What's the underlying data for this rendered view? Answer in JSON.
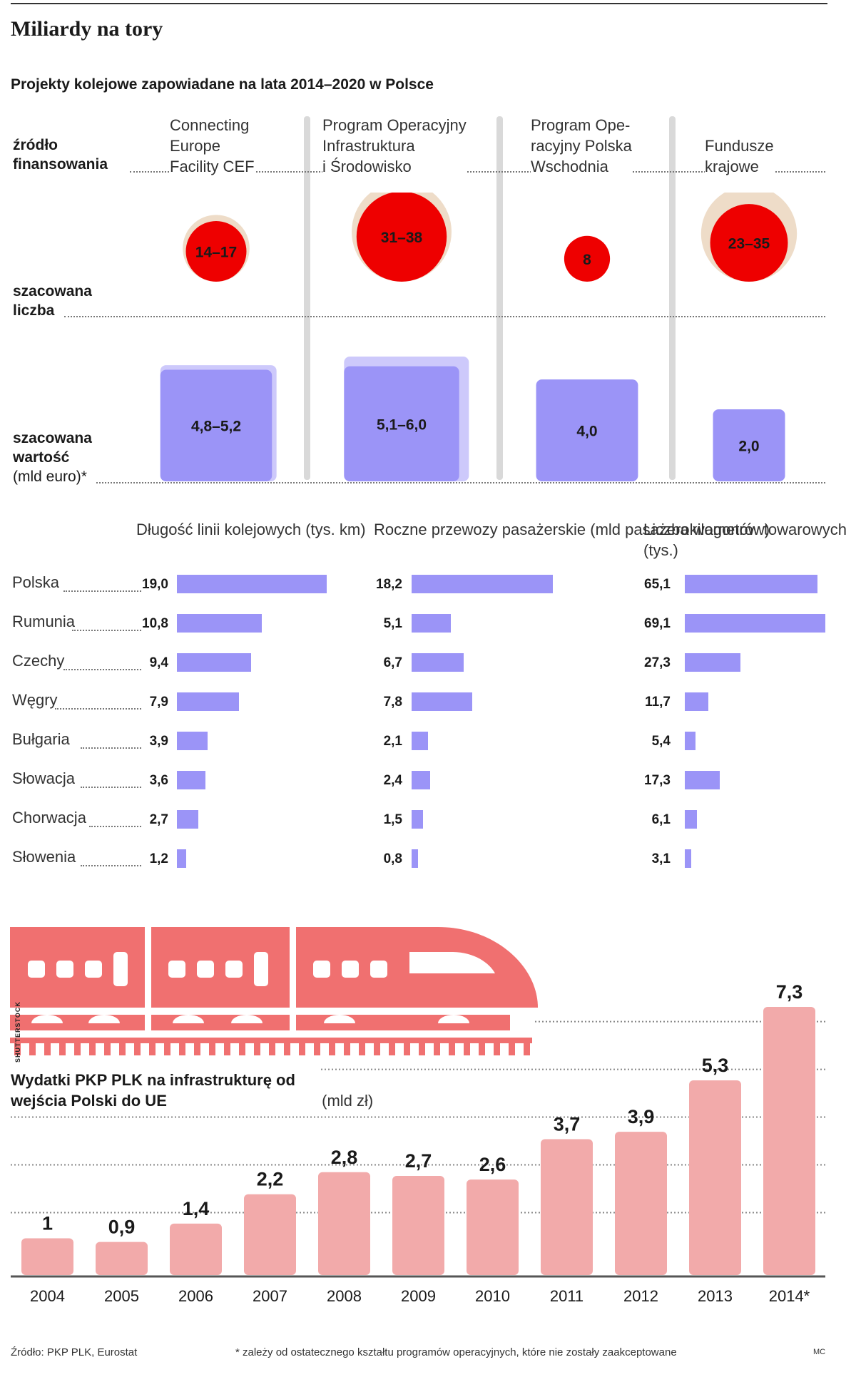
{
  "header": {
    "headline": "Miliardy na tory",
    "subtitle": "Projekty kolejowe zapowiadane na lata 2014–2020 w Polsce"
  },
  "top_chart": {
    "row_labels": {
      "source_line1": "źródło",
      "source_line2": "finansowania",
      "count_line1": "szacowana",
      "count_line2": "liczba",
      "value_line1": "szacowana",
      "value_line2": "wartość",
      "value_unit": "(mld euro)*"
    },
    "programs": [
      {
        "lines": [
          "Connecting",
          "Europe",
          "Facility CEF"
        ],
        "count_label": "14–17",
        "count_min": 14,
        "count_max": 17,
        "value_label": "4,8–5,2",
        "value_min": 4.8,
        "value_max": 5.2
      },
      {
        "lines": [
          "Program Operacyjny",
          "Infrastruktura",
          "i Środowisko"
        ],
        "count_label": "31–38",
        "count_min": 31,
        "count_max": 38,
        "value_label": "5,1–6,0",
        "value_min": 5.1,
        "value_max": 6.0
      },
      {
        "lines": [
          "Program Ope-",
          "racyjny Polska",
          "Wschodnia"
        ],
        "count_label": "8",
        "count_min": 8,
        "count_max": 8,
        "value_label": "4,0",
        "value_min": 4.0,
        "value_max": 4.0
      },
      {
        "lines": [
          "Fundusze",
          "krajowe"
        ],
        "count_label": "23–35",
        "count_min": 23,
        "count_max": 35,
        "value_label": "2,0",
        "value_min": 2.0,
        "value_max": 2.0
      }
    ],
    "colors": {
      "bubble_core": "#ee0000",
      "bubble_halo": "#eedcc8",
      "box_core": "#9b94f7",
      "box_halo": "#cdc9fb"
    }
  },
  "chart_data": [
    {
      "type": "bar",
      "title": "Długość linii kolejowych (tys. km)",
      "categories": [
        "Polska",
        "Rumunia",
        "Czechy",
        "Węgry",
        "Bułgaria",
        "Słowacja",
        "Chorwacja",
        "Słowenia"
      ],
      "values": [
        19.0,
        10.8,
        9.4,
        7.9,
        3.9,
        3.6,
        2.7,
        1.2
      ],
      "labels": [
        "19,0",
        "10,8",
        "9,4",
        "7,9",
        "3,9",
        "3,6",
        "2,7",
        "1,2"
      ],
      "orientation": "horizontal",
      "color": "#9b94f7"
    },
    {
      "type": "bar",
      "title": "Roczne przewozy pasażerskie (mld pasażerokilometrów)",
      "categories": [
        "Polska",
        "Rumunia",
        "Czechy",
        "Węgry",
        "Bułgaria",
        "Słowacja",
        "Chorwacja",
        "Słowenia"
      ],
      "values": [
        18.2,
        5.1,
        6.7,
        7.8,
        2.1,
        2.4,
        1.5,
        0.8
      ],
      "labels": [
        "18,2",
        "5,1",
        "6,7",
        "7,8",
        "2,1",
        "2,4",
        "1,5",
        "0,8"
      ],
      "orientation": "horizontal",
      "color": "#9b94f7"
    },
    {
      "type": "bar",
      "title": "Liczba wagonów towarowych (tys.)",
      "categories": [
        "Polska",
        "Rumunia",
        "Czechy",
        "Węgry",
        "Bułgaria",
        "Słowacja",
        "Chorwacja",
        "Słowenia"
      ],
      "values": [
        65.1,
        69.1,
        27.3,
        11.7,
        5.4,
        17.3,
        6.1,
        3.1
      ],
      "labels": [
        "65,1",
        "69,1",
        "27,3",
        "11,7",
        "5,4",
        "17,3",
        "6,1",
        "3,1"
      ],
      "orientation": "horizontal",
      "color": "#9b94f7"
    },
    {
      "type": "bar",
      "title": "Wydatki PKP PLK na infrastrukturę od wejścia Polski do UE",
      "unit": "(mld zł)",
      "categories": [
        "2004",
        "2005",
        "2006",
        "2007",
        "2008",
        "2009",
        "2010",
        "2011",
        "2012",
        "2013",
        "2014*"
      ],
      "values": [
        1.0,
        0.9,
        1.4,
        2.2,
        2.8,
        2.7,
        2.6,
        3.7,
        3.9,
        5.3,
        7.3
      ],
      "labels": [
        "1",
        "0,9",
        "1,4",
        "2,2",
        "2,8",
        "2,7",
        "2,6",
        "3,7",
        "3,9",
        "5,3",
        "7,3"
      ],
      "orientation": "vertical",
      "color": "#f2aaaa",
      "grid": true
    }
  ],
  "illustration": {
    "icon": "train-icon",
    "color": "#f07070"
  },
  "footer": {
    "source": "Źródło: PKP PLK, Eurostat",
    "note": "* zależy od ostatecznego kształtu programów operacyjnych, które nie zostały zaakceptowane",
    "initials": "MC",
    "watermark": "SHUTTERSTOCK"
  }
}
